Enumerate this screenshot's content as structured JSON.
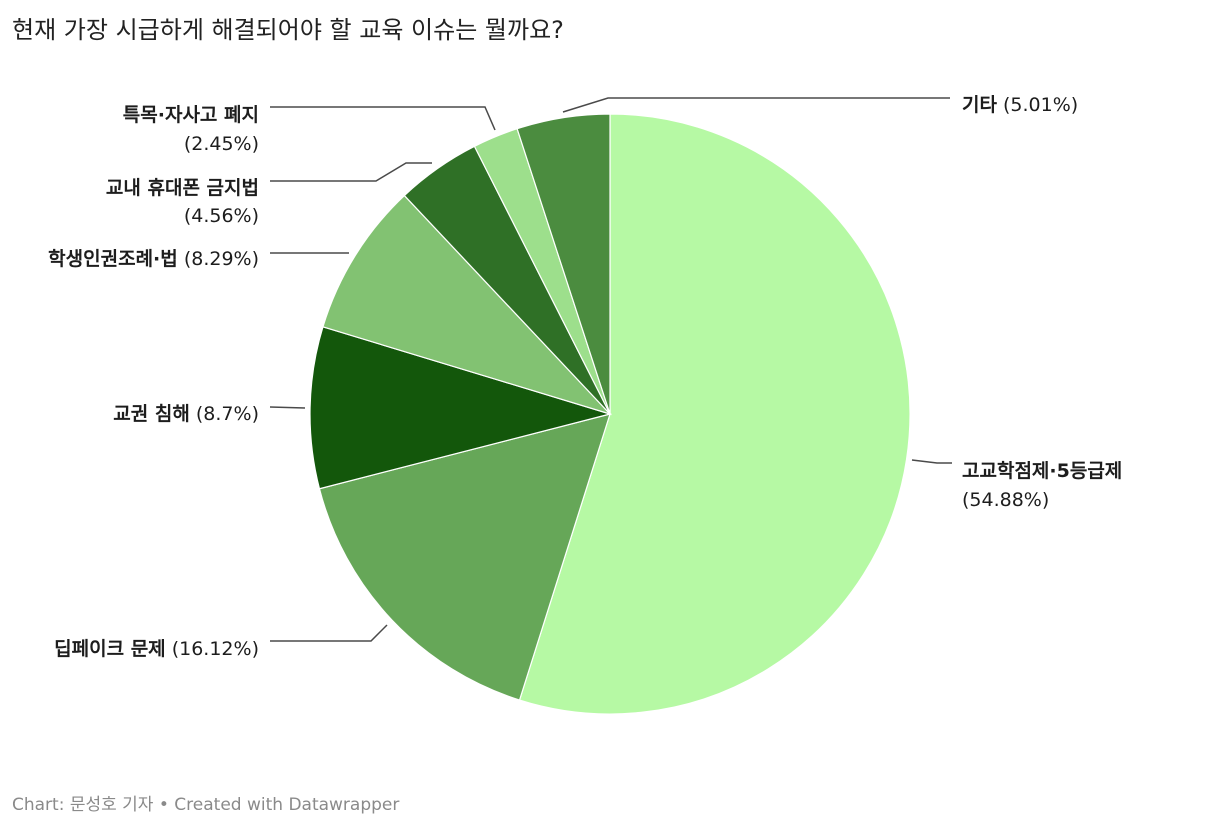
{
  "chart_data": {
    "type": "pie",
    "title": "현재 가장 시급하게 해결되어야 할 교육 이슈는 뭘까요?",
    "slices": [
      {
        "name": "고교학점제·5등급제",
        "value": 54.88,
        "value_label": "(54.88%)",
        "color": "#b6f9a4"
      },
      {
        "name": "딥페이크 문제",
        "value": 16.12,
        "value_label": "(16.12%)",
        "color": "#66a758"
      },
      {
        "name": "교권 침해",
        "value": 8.7,
        "value_label": "(8.7%)",
        "color": "#13570b"
      },
      {
        "name": "학생인권조례·법",
        "value": 8.29,
        "value_label": "(8.29%)",
        "color": "#82c272"
      },
      {
        "name": "교내 휴대폰 금지법",
        "value": 4.56,
        "value_label": "(4.56%)",
        "color": "#2f7026"
      },
      {
        "name": "특목·자사고 폐지",
        "value": 2.45,
        "value_label": "(2.45%)",
        "color": "#9ddf8c"
      },
      {
        "name": "기타",
        "value": 5.01,
        "value_label": "(5.01%)",
        "color": "#4b8c3f"
      }
    ]
  },
  "footer": {
    "text": "Chart: 문성호 기자 • Created with Datawrapper"
  }
}
